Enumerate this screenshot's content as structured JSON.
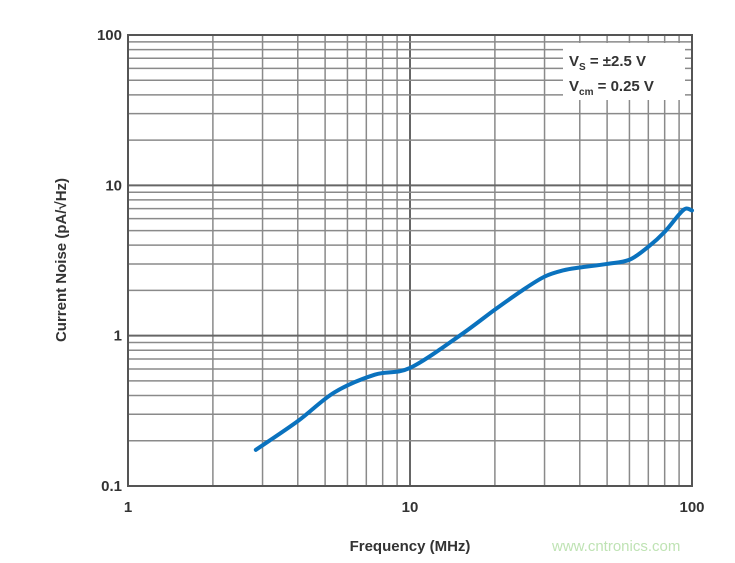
{
  "chart_data": {
    "type": "line",
    "xlabel": "Frequency (MHz)",
    "ylabel": "Current Noise (pA/√Hz)",
    "xscale": "log",
    "yscale": "log",
    "xlim": [
      1,
      100
    ],
    "ylim": [
      0.1,
      100
    ],
    "xticks": [
      "1",
      "10",
      "100"
    ],
    "yticks": [
      "0.1",
      "1",
      "10",
      "100"
    ],
    "grid": true,
    "legend_placement": "top-right",
    "annotations": [
      "VS = ±2.5 V",
      "Vcm = 0.25 V"
    ],
    "series": [
      {
        "color": "#0a72be",
        "x": [
          2.84,
          4,
          5.4,
          7.5,
          10,
          15,
          20,
          25,
          30,
          35,
          40,
          50,
          60,
          70,
          80,
          90,
          95,
          100
        ],
        "y": [
          0.174,
          0.27,
          0.42,
          0.55,
          0.61,
          1.0,
          1.49,
          2.0,
          2.47,
          2.72,
          2.84,
          3.0,
          3.2,
          3.9,
          4.9,
          6.4,
          7.0,
          6.8
        ]
      }
    ]
  },
  "legend": {
    "line1": {
      "main": "V",
      "sub": "S",
      "rest": " = ±2.5 V"
    },
    "line2": {
      "main": "V",
      "sub": "cm",
      "rest": " = 0.25 V"
    }
  },
  "watermark": "www.cntronics.com"
}
